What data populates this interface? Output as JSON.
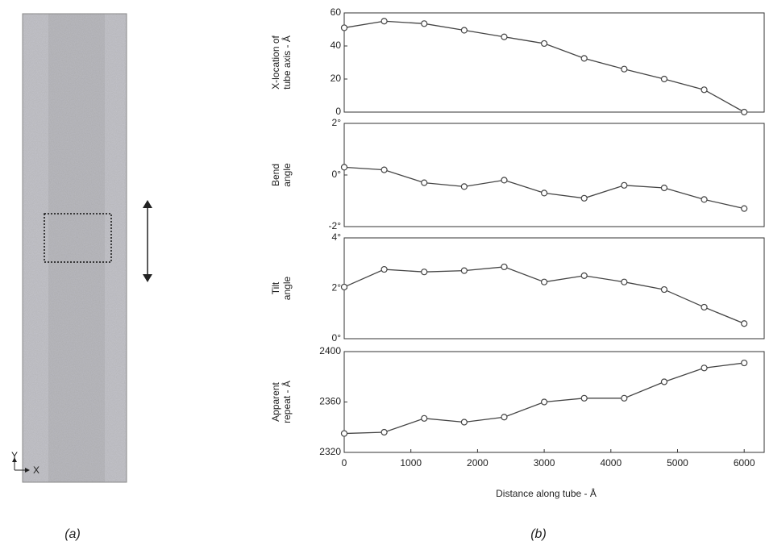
{
  "figure": {
    "panel_a_label": "(a)",
    "panel_b_label": "(b)",
    "axis_y": "Y",
    "axis_x": "X"
  },
  "chart_data": [
    {
      "type": "line",
      "ylabel": [
        "X-location of",
        "tube axis - Å"
      ],
      "x": [
        0,
        600,
        1200,
        1800,
        2400,
        3000,
        3600,
        4200,
        4800,
        5400,
        6000
      ],
      "values": [
        51,
        55,
        53.5,
        49.5,
        45.5,
        41.5,
        32.5,
        26,
        20,
        13.5,
        0
      ],
      "xlim": [
        0,
        6300
      ],
      "ylim": [
        0,
        60
      ],
      "yticks": [
        0,
        20,
        40,
        60
      ],
      "color": "#444444"
    },
    {
      "type": "line",
      "ylabel": [
        "Bend",
        "angle"
      ],
      "x": [
        0,
        600,
        1200,
        1800,
        2400,
        3000,
        3600,
        4200,
        4800,
        5400,
        6000
      ],
      "values": [
        0.3,
        0.2,
        -0.3,
        -0.45,
        -0.2,
        -0.7,
        -0.9,
        -0.4,
        -0.5,
        -0.95,
        -1.3
      ],
      "xlim": [
        0,
        6300
      ],
      "ylim": [
        -2,
        2
      ],
      "yticks": [
        {
          "value": -2,
          "label": "-2°"
        },
        {
          "value": 0,
          "label": "0°"
        },
        {
          "value": 2,
          "label": "2°"
        }
      ],
      "color": "#444444"
    },
    {
      "type": "line",
      "ylabel": [
        "Tilt",
        "angle"
      ],
      "x": [
        0,
        600,
        1200,
        1800,
        2400,
        3000,
        3600,
        4200,
        4800,
        5400,
        6000
      ],
      "values": [
        2.05,
        2.75,
        2.65,
        2.7,
        2.85,
        2.25,
        2.5,
        2.25,
        1.95,
        1.25,
        0.6
      ],
      "xlim": [
        0,
        6300
      ],
      "ylim": [
        0,
        4
      ],
      "yticks": [
        {
          "value": 0,
          "label": "0°"
        },
        {
          "value": 2,
          "label": "2°"
        },
        {
          "value": 4,
          "label": "4°"
        }
      ],
      "color": "#444444"
    },
    {
      "type": "line",
      "ylabel": [
        "Apparent",
        "repeat - Å"
      ],
      "xlabel": "Distance along tube - Å",
      "x": [
        0,
        600,
        1200,
        1800,
        2400,
        3000,
        3600,
        4200,
        4800,
        5400,
        6000
      ],
      "values": [
        2335,
        2336,
        2347,
        2344,
        2348,
        2360,
        2363,
        2363,
        2376,
        2387,
        2391
      ],
      "xlim": [
        0,
        6300
      ],
      "ylim": [
        2320,
        2400
      ],
      "yticks": [
        2320,
        2360,
        2400
      ],
      "xticks": [
        0,
        1000,
        2000,
        3000,
        4000,
        5000,
        6000
      ],
      "color": "#444444"
    }
  ]
}
